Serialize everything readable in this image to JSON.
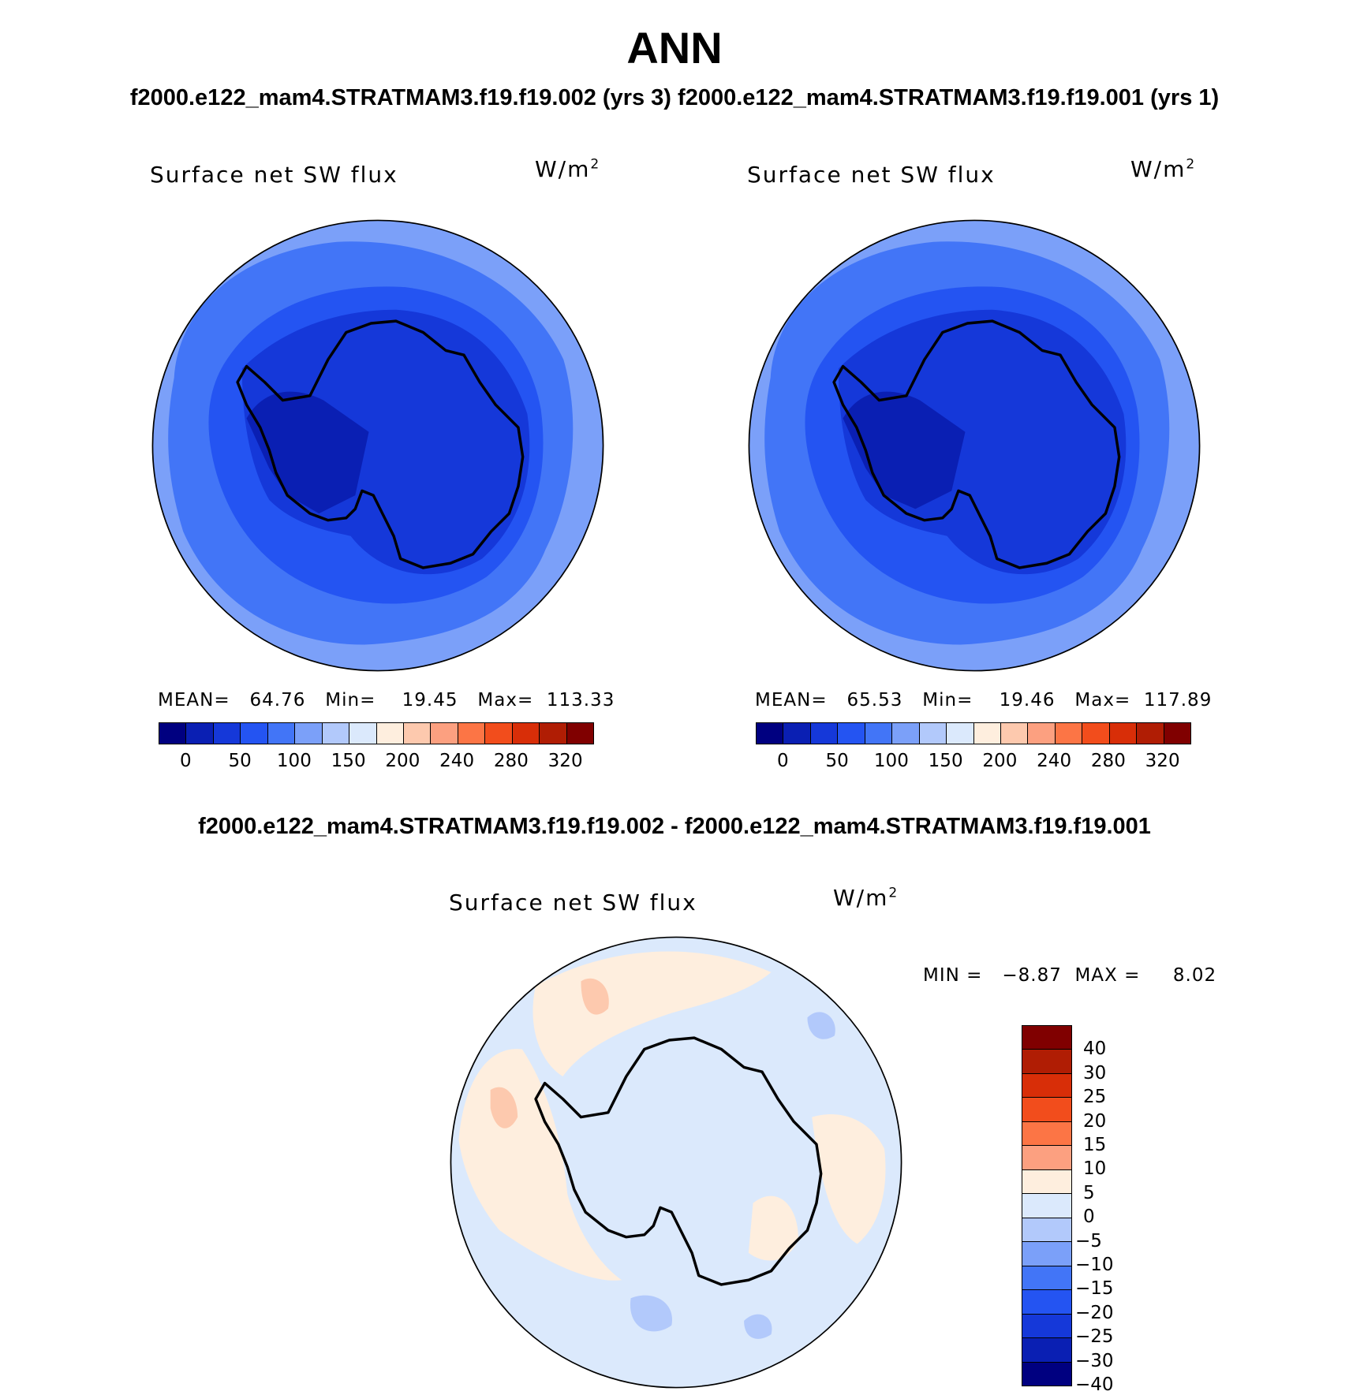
{
  "header": {
    "title": "ANN",
    "left_case": "f2000.e122_mam4.STRATMAM3.f19.f19.002 (yrs 3)",
    "right_case": "f2000.e122_mam4.STRATMAM3.f19.f19.001 (yrs 1)",
    "diff_title": "f2000.e122_mam4.STRATMAM3.f19.f19.002 - f2000.e122_mam4.STRATMAM3.f19.f19.001"
  },
  "panels": [
    {
      "variable": "Surface net SW flux",
      "units_base": "W/m",
      "units_exp": "2",
      "stats": "MEAN=   64.76   Min=    19.45   Max=  113.33"
    },
    {
      "variable": "Surface net SW flux",
      "units_base": "W/m",
      "units_exp": "2",
      "stats": "MEAN=   65.53   Min=    19.46   Max=  117.89"
    }
  ],
  "diff_panel": {
    "variable": "Surface net SW flux",
    "units_base": "W/m",
    "units_exp": "2",
    "minmax": "MIN =   −8.87  MAX =     8.02"
  },
  "colorbar_main": {
    "colors": [
      "#000080",
      "#0a1fb3",
      "#1538d9",
      "#2454f2",
      "#4275f7",
      "#7ba0f9",
      "#b2c9fb",
      "#dbe9fc",
      "#feeede",
      "#fdc9ae",
      "#fca080",
      "#fc7545",
      "#f24d1c",
      "#d82e08",
      "#b01d04",
      "#800000"
    ],
    "labels": [
      "0",
      "50",
      "100",
      "150",
      "200",
      "240",
      "280",
      "320"
    ]
  },
  "colorbar_diff": {
    "colors": [
      "#800000",
      "#b01d04",
      "#d82e08",
      "#f24d1c",
      "#fc7545",
      "#fca080",
      "#feeede",
      "#dbe9fc",
      "#b2c9fb",
      "#7ba0f9",
      "#4275f7",
      "#2454f2",
      "#1538d9",
      "#0a1fb3",
      "#000080"
    ],
    "labels": [
      "40",
      "30",
      "25",
      "20",
      "15",
      "10",
      "5",
      "0",
      "−5",
      "−10",
      "−15",
      "−20",
      "−25",
      "−30",
      "−40"
    ]
  }
}
